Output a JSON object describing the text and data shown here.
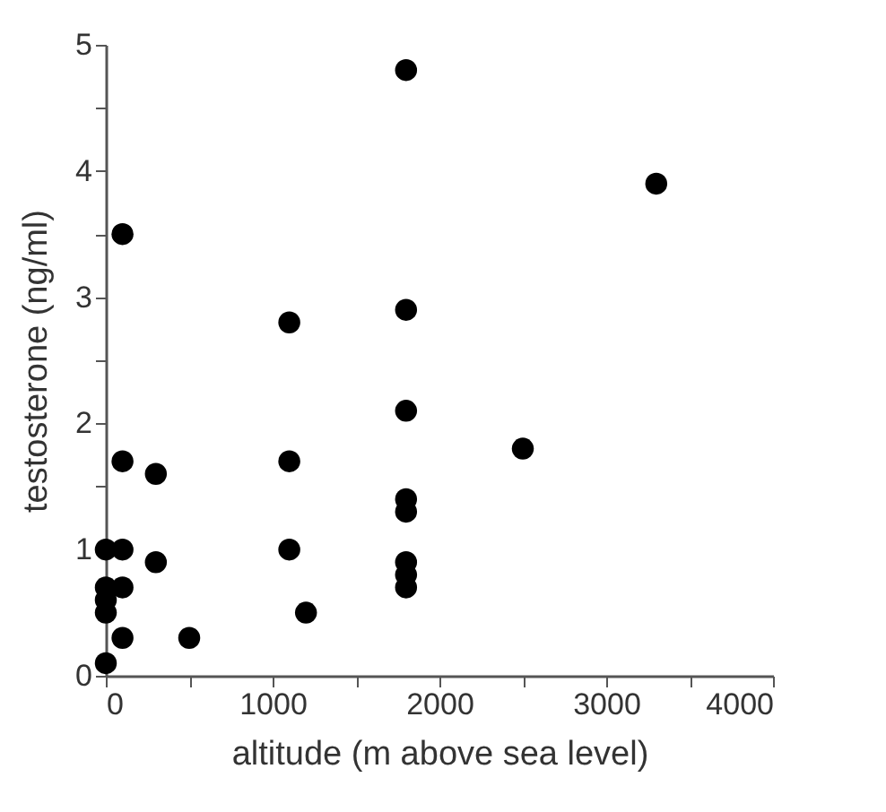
{
  "chart_data": {
    "type": "scatter",
    "xlabel": "altitude (m above sea level)",
    "ylabel": "testosterone (ng/ml)",
    "x": [
      0,
      0,
      0,
      0,
      0,
      100,
      100,
      100,
      100,
      100,
      300,
      300,
      500,
      1100,
      1100,
      1100,
      1200,
      1800,
      1800,
      1800,
      1800,
      1800,
      1800,
      1800,
      1800,
      2500,
      3300
    ],
    "series": [
      {
        "color": "#000000",
        "values": [
          0.1,
          0.5,
          0.6,
          0.7,
          1.0,
          3.5,
          1.7,
          1.0,
          0.7,
          0.3,
          1.6,
          0.9,
          0.3,
          2.8,
          1.7,
          1.0,
          0.5,
          4.8,
          2.9,
          2.1,
          1.4,
          1.3,
          0.9,
          0.8,
          0.7,
          1.8,
          3.9
        ]
      }
    ],
    "xlim": [
      0,
      4000
    ],
    "ylim": [
      0,
      5
    ],
    "xticks": [
      0,
      {
        "value": 500,
        "label": null
      },
      1000,
      {
        "value": 1500,
        "label": null
      },
      2000,
      {
        "value": 2500,
        "label": null
      },
      3000,
      {
        "value": 3500,
        "label": null
      },
      4000
    ],
    "yticks": [
      0,
      {
        "value": 0.5,
        "label": null
      },
      1,
      {
        "value": 1.5,
        "label": null
      },
      2,
      {
        "value": 2.5,
        "label": null
      },
      3,
      {
        "value": 3.5,
        "label": null
      },
      4,
      {
        "value": 4.5,
        "label": null
      },
      5
    ],
    "marker": "circle",
    "grid": false
  }
}
